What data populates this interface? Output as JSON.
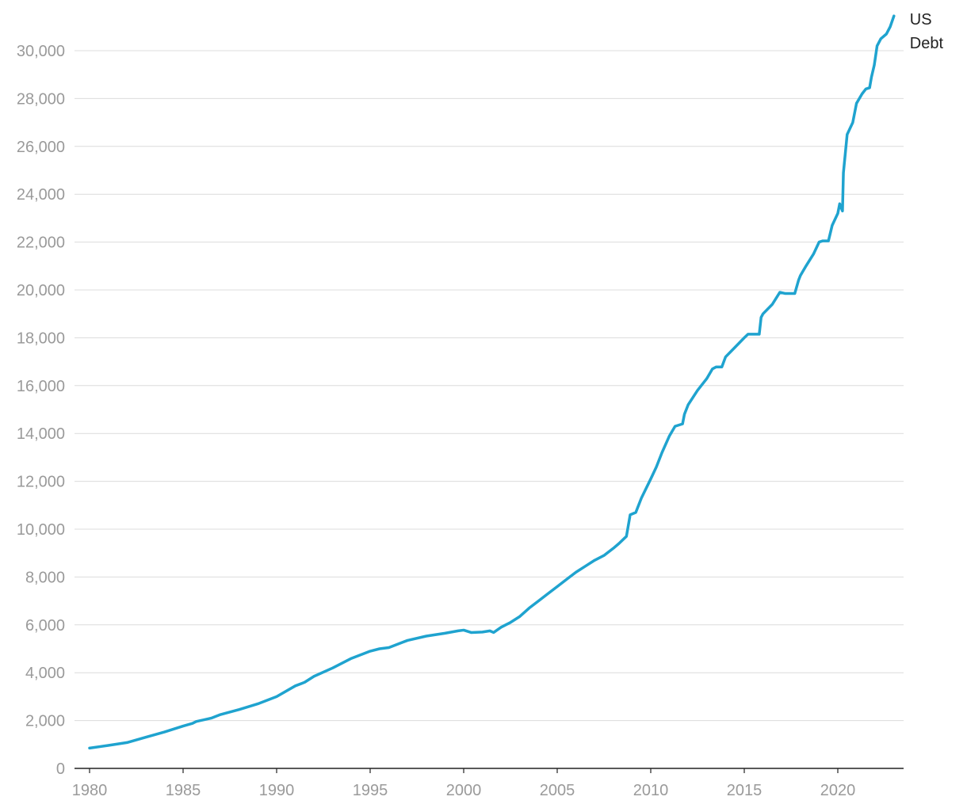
{
  "chart_data": {
    "type": "line",
    "title": "",
    "xlabel": "",
    "ylabel": "",
    "xlim": [
      1980,
      2023
    ],
    "ylim": [
      0,
      31500
    ],
    "grid": true,
    "legend": "none",
    "x_ticks": [
      1980,
      1985,
      1990,
      1995,
      2000,
      2005,
      2010,
      2015,
      2020
    ],
    "x_tick_labels": [
      "1980",
      "1985",
      "1990",
      "1995",
      "2000",
      "2005",
      "2010",
      "2015",
      "2020"
    ],
    "y_ticks": [
      0,
      2000,
      4000,
      6000,
      8000,
      10000,
      12000,
      14000,
      16000,
      18000,
      20000,
      22000,
      24000,
      26000,
      28000,
      30000
    ],
    "y_tick_labels": [
      "0",
      "2,000",
      "4,000",
      "6,000",
      "8,000",
      "10,000",
      "12,000",
      "14,000",
      "16,000",
      "18,000",
      "20,000",
      "22,000",
      "24,000",
      "26,000",
      "28,000",
      "30,000"
    ],
    "series": [
      {
        "name": "US Debt",
        "label_lines": [
          "US",
          "Debt"
        ],
        "color": "#1fa3cf",
        "points": [
          [
            1980.0,
            850
          ],
          [
            1981.0,
            960
          ],
          [
            1982.0,
            1080
          ],
          [
            1983.0,
            1300
          ],
          [
            1984.0,
            1520
          ],
          [
            1985.0,
            1770
          ],
          [
            1985.5,
            1880
          ],
          [
            1985.7,
            1960
          ],
          [
            1986.5,
            2100
          ],
          [
            1987.0,
            2250
          ],
          [
            1988.0,
            2460
          ],
          [
            1989.0,
            2700
          ],
          [
            1990.0,
            3000
          ],
          [
            1991.0,
            3450
          ],
          [
            1991.5,
            3600
          ],
          [
            1992.0,
            3850
          ],
          [
            1993.0,
            4200
          ],
          [
            1994.0,
            4600
          ],
          [
            1995.0,
            4900
          ],
          [
            1995.5,
            5000
          ],
          [
            1996.0,
            5050
          ],
          [
            1997.0,
            5350
          ],
          [
            1998.0,
            5530
          ],
          [
            1999.0,
            5650
          ],
          [
            1999.7,
            5750
          ],
          [
            2000.0,
            5780
          ],
          [
            2000.4,
            5680
          ],
          [
            2001.0,
            5700
          ],
          [
            2001.4,
            5750
          ],
          [
            2001.6,
            5680
          ],
          [
            2002.0,
            5900
          ],
          [
            2002.5,
            6100
          ],
          [
            2003.0,
            6350
          ],
          [
            2003.5,
            6700
          ],
          [
            2004.0,
            7000
          ],
          [
            2004.5,
            7300
          ],
          [
            2005.0,
            7600
          ],
          [
            2005.5,
            7900
          ],
          [
            2006.0,
            8200
          ],
          [
            2006.5,
            8450
          ],
          [
            2007.0,
            8700
          ],
          [
            2007.5,
            8900
          ],
          [
            2008.0,
            9200
          ],
          [
            2008.3,
            9400
          ],
          [
            2008.7,
            9700
          ],
          [
            2008.9,
            10600
          ],
          [
            2009.2,
            10700
          ],
          [
            2009.5,
            11300
          ],
          [
            2010.0,
            12100
          ],
          [
            2010.3,
            12600
          ],
          [
            2010.6,
            13200
          ],
          [
            2011.0,
            13900
          ],
          [
            2011.3,
            14300
          ],
          [
            2011.7,
            14400
          ],
          [
            2011.8,
            14800
          ],
          [
            2012.0,
            15200
          ],
          [
            2012.5,
            15800
          ],
          [
            2013.0,
            16300
          ],
          [
            2013.3,
            16700
          ],
          [
            2013.5,
            16780
          ],
          [
            2013.8,
            16780
          ],
          [
            2014.0,
            17200
          ],
          [
            2014.5,
            17600
          ],
          [
            2015.0,
            18000
          ],
          [
            2015.2,
            18150
          ],
          [
            2015.8,
            18150
          ],
          [
            2015.9,
            18850
          ],
          [
            2016.0,
            19000
          ],
          [
            2016.5,
            19400
          ],
          [
            2016.9,
            19900
          ],
          [
            2017.2,
            19850
          ],
          [
            2017.7,
            19850
          ],
          [
            2017.9,
            20400
          ],
          [
            2018.0,
            20600
          ],
          [
            2018.3,
            21000
          ],
          [
            2018.7,
            21500
          ],
          [
            2019.0,
            22000
          ],
          [
            2019.2,
            22050
          ],
          [
            2019.5,
            22050
          ],
          [
            2019.7,
            22700
          ],
          [
            2020.0,
            23200
          ],
          [
            2020.1,
            23600
          ],
          [
            2020.25,
            23300
          ],
          [
            2020.3,
            24900
          ],
          [
            2020.5,
            26500
          ],
          [
            2020.8,
            27000
          ],
          [
            2021.0,
            27800
          ],
          [
            2021.3,
            28200
          ],
          [
            2021.5,
            28400
          ],
          [
            2021.7,
            28450
          ],
          [
            2021.8,
            28900
          ],
          [
            2021.95,
            29400
          ],
          [
            2022.1,
            30200
          ],
          [
            2022.3,
            30500
          ],
          [
            2022.6,
            30700
          ],
          [
            2022.8,
            31000
          ],
          [
            2023.0,
            31450
          ]
        ]
      }
    ]
  }
}
